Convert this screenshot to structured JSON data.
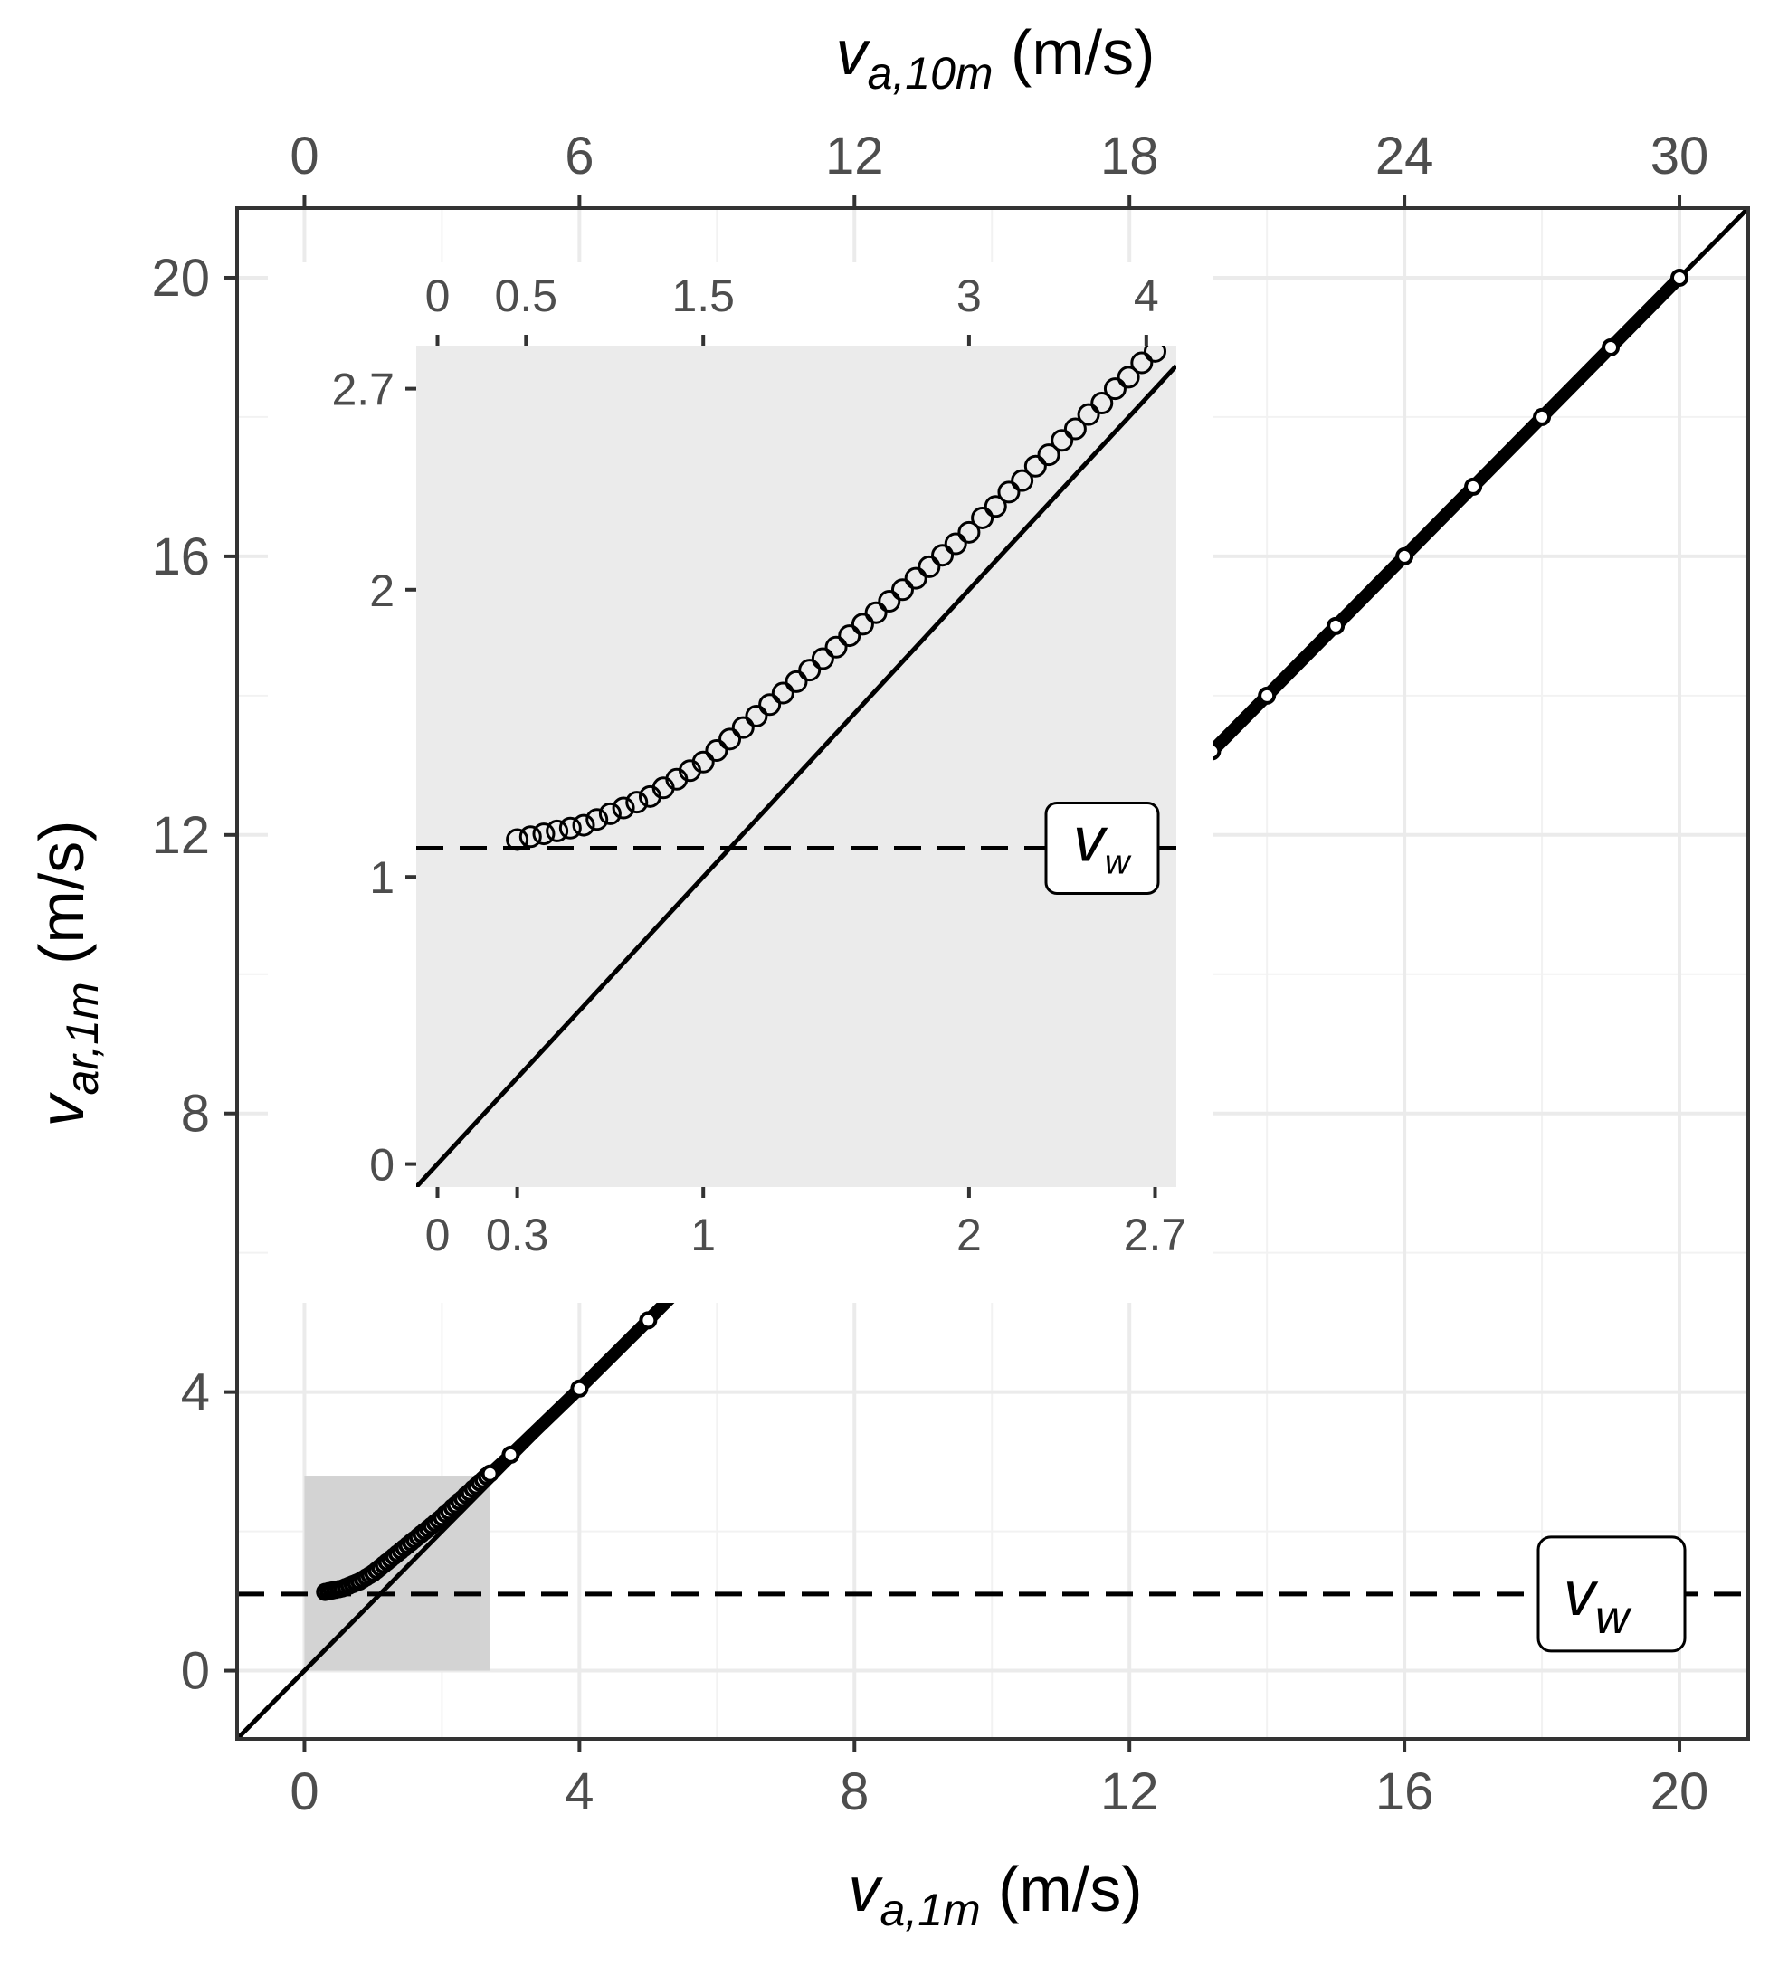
{
  "chart_data": {
    "type": "scatter",
    "main": {
      "x_label": {
        "var": "v",
        "sub": "a,1m",
        "unit": " (m/s)"
      },
      "y_label": {
        "var": "v",
        "sub": "ar,1m",
        "unit": " (m/s)"
      },
      "top_label": {
        "var": "v",
        "sub": "a,10m",
        "unit": " (m/s)"
      },
      "xlim": [
        -0.98,
        21.0
      ],
      "ylim": [
        -0.98,
        21.0
      ],
      "x_ticks": [
        0,
        4,
        8,
        12,
        16,
        20
      ],
      "x_tick_labels": [
        "0",
        "4",
        "8",
        "12",
        "16",
        "20"
      ],
      "y_ticks": [
        0,
        4,
        8,
        12,
        16,
        20
      ],
      "y_tick_labels": [
        "0",
        "4",
        "8",
        "12",
        "16",
        "20"
      ],
      "top_ticks_labels": [
        "0",
        "6",
        "12",
        "18",
        "24",
        "30"
      ],
      "top_ticks_pos": [
        0,
        4,
        8,
        12,
        16,
        20
      ],
      "grid": true,
      "identity_line": true,
      "threshold_y": 1.1,
      "threshold_label": {
        "var": "v",
        "sub": "w"
      },
      "zoom_region": {
        "x": [
          0,
          2.7
        ],
        "y": [
          0,
          2.8
        ]
      },
      "series": [
        {
          "x": [
            0.3,
            0.35,
            0.4,
            0.45,
            0.5,
            0.55,
            0.6,
            0.65,
            0.7,
            0.75,
            0.8,
            0.85,
            0.9,
            0.95,
            1.0,
            1.05,
            1.1,
            1.15,
            1.2,
            1.25,
            1.3,
            1.35,
            1.4,
            1.45,
            1.5,
            1.55,
            1.6,
            1.65,
            1.7,
            1.75,
            1.8,
            1.85,
            1.9,
            1.95,
            2.0,
            2.05,
            2.1,
            2.15,
            2.2,
            2.25,
            2.3,
            2.35,
            2.4,
            2.45,
            2.5,
            2.55,
            2.6,
            2.65,
            2.7,
            3.0,
            4.0,
            5.0,
            13.2,
            14.0,
            15.0,
            16.0,
            17.0,
            18.0,
            19.0,
            20.0
          ],
          "y": [
            1.13,
            1.14,
            1.15,
            1.16,
            1.17,
            1.18,
            1.2,
            1.22,
            1.24,
            1.26,
            1.28,
            1.31,
            1.34,
            1.37,
            1.4,
            1.44,
            1.48,
            1.52,
            1.56,
            1.6,
            1.64,
            1.68,
            1.72,
            1.76,
            1.8,
            1.84,
            1.88,
            1.92,
            1.96,
            2.0,
            2.04,
            2.08,
            2.12,
            2.16,
            2.2,
            2.25,
            2.29,
            2.34,
            2.38,
            2.43,
            2.47,
            2.52,
            2.56,
            2.61,
            2.65,
            2.7,
            2.74,
            2.79,
            2.83,
            3.1,
            4.05,
            5.03,
            13.2,
            14.0,
            15.0,
            16.0,
            17.0,
            18.0,
            19.0,
            20.0
          ]
        }
      ]
    },
    "inset": {
      "xlim": [
        -0.08,
        2.78
      ],
      "ylim": [
        -0.08,
        2.85
      ],
      "x_ticks": [
        0,
        0.3,
        1,
        2,
        2.7
      ],
      "x_tick_labels": [
        "0",
        "0.3",
        "1",
        "2",
        "2.7"
      ],
      "y_ticks": [
        0,
        1,
        2,
        2.7
      ],
      "y_tick_labels": [
        "0",
        "1",
        "2",
        "2.7"
      ],
      "top_ticks_pos": [
        0,
        0.333,
        1.0,
        2.0,
        2.667
      ],
      "top_tick_labels": [
        "0",
        "0.5",
        "1.5",
        "3",
        "4"
      ],
      "threshold_y": 1.1,
      "threshold_label": {
        "var": "v",
        "sub": "w"
      },
      "series": [
        {
          "x": [
            0.3,
            0.35,
            0.4,
            0.45,
            0.5,
            0.55,
            0.6,
            0.65,
            0.7,
            0.75,
            0.8,
            0.85,
            0.9,
            0.95,
            1.0,
            1.05,
            1.1,
            1.15,
            1.2,
            1.25,
            1.3,
            1.35,
            1.4,
            1.45,
            1.5,
            1.55,
            1.6,
            1.65,
            1.7,
            1.75,
            1.8,
            1.85,
            1.9,
            1.95,
            2.0,
            2.05,
            2.1,
            2.15,
            2.2,
            2.25,
            2.3,
            2.35,
            2.4,
            2.45,
            2.5,
            2.55,
            2.6,
            2.65,
            2.7
          ],
          "y": [
            1.13,
            1.14,
            1.15,
            1.16,
            1.17,
            1.18,
            1.2,
            1.22,
            1.24,
            1.26,
            1.28,
            1.31,
            1.34,
            1.37,
            1.4,
            1.44,
            1.48,
            1.52,
            1.56,
            1.6,
            1.64,
            1.68,
            1.72,
            1.76,
            1.8,
            1.84,
            1.88,
            1.92,
            1.96,
            2.0,
            2.04,
            2.08,
            2.12,
            2.16,
            2.2,
            2.25,
            2.29,
            2.34,
            2.38,
            2.43,
            2.47,
            2.52,
            2.56,
            2.61,
            2.65,
            2.7,
            2.74,
            2.79,
            2.83
          ]
        }
      ]
    }
  }
}
